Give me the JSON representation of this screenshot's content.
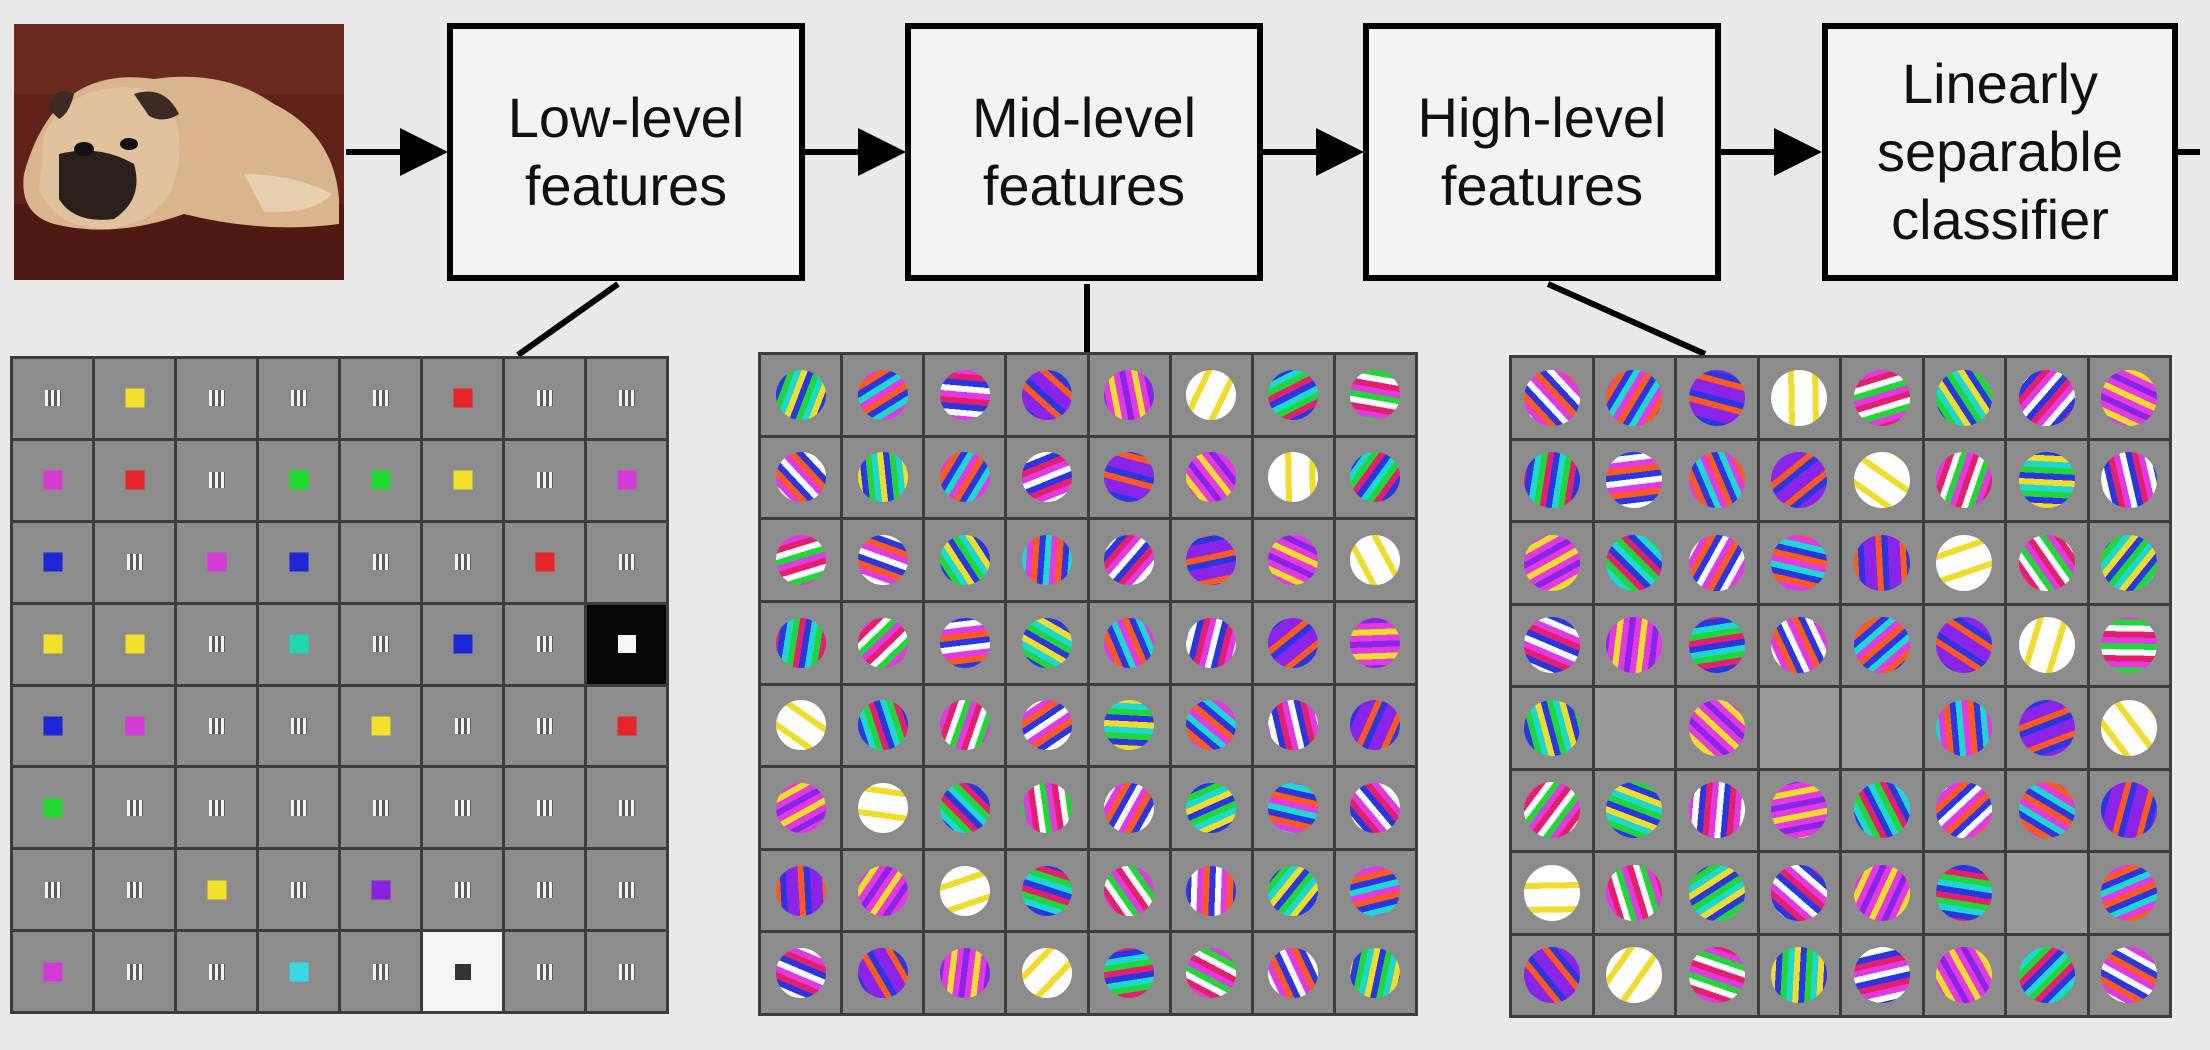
{
  "diagram": {
    "stages": [
      {
        "id": "low",
        "label": "Low-level\nfeatures"
      },
      {
        "id": "mid",
        "label": "Mid-level\nfeatures"
      },
      {
        "id": "high",
        "label": "High-level\nfeatures"
      },
      {
        "id": "cls",
        "label": "Linearly\nseparable\nclassifier"
      }
    ],
    "input_image": {
      "subject": "dog lying on a couch"
    },
    "low_level_filters": [
      [
        "line",
        "yellow",
        "line",
        "line",
        "line",
        "red",
        "line",
        "line"
      ],
      [
        "magenta",
        "red",
        "line",
        "green",
        "green",
        "yellow",
        "line",
        "magenta"
      ],
      [
        "blue",
        "line",
        "magenta",
        "blue",
        "line",
        "line",
        "red",
        "line"
      ],
      [
        "yellow",
        "yellow",
        "line",
        "teal",
        "line",
        "blue",
        "line",
        "white-on-black"
      ],
      [
        "blue",
        "magenta",
        "line",
        "line",
        "yellow",
        "line",
        "line",
        "red"
      ],
      [
        "green",
        "line",
        "line",
        "line",
        "line",
        "line",
        "line",
        "line"
      ],
      [
        "line",
        "line",
        "yellow",
        "line",
        "purple",
        "line",
        "line",
        "line"
      ],
      [
        "magenta",
        "line",
        "line",
        "cyan",
        "line",
        "dark-on-white",
        "line",
        "line"
      ]
    ],
    "high_level_empty_cells": [
      [
        4,
        1
      ],
      [
        4,
        3
      ],
      [
        4,
        4
      ],
      [
        6,
        6
      ]
    ],
    "colors": {
      "background": "#e9e9e9",
      "filter_gray": "#8c8c8c",
      "grid_border": "#3c3c3c",
      "yellow": "#f2e02a",
      "red": "#e5252a",
      "magenta": "#d63ad6",
      "blue": "#1e26d6",
      "green": "#1ed62e",
      "teal": "#21d6b0",
      "cyan": "#3ad8e0",
      "purple": "#8a20e0"
    }
  }
}
